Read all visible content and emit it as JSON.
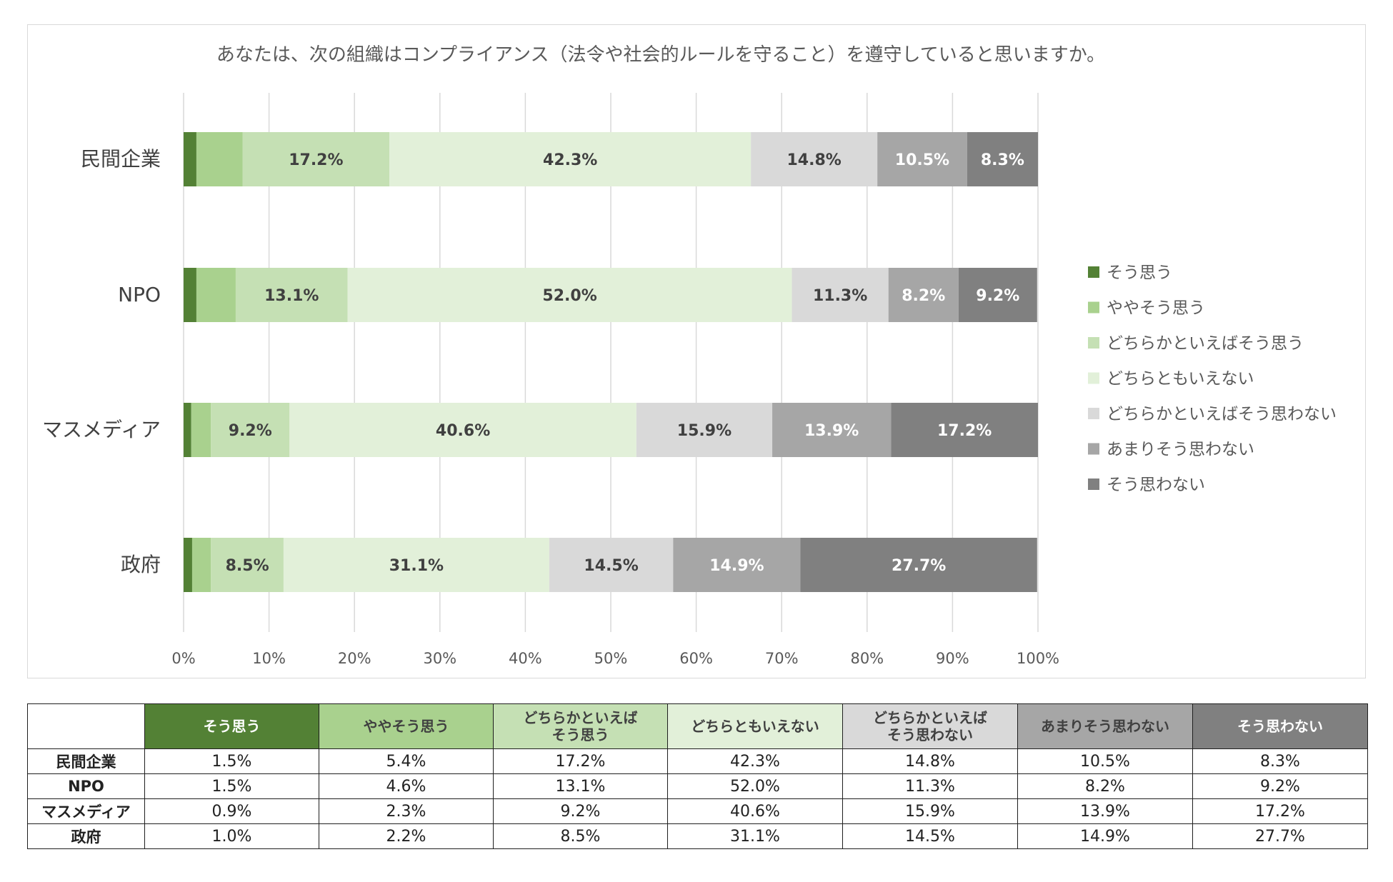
{
  "chart_data": {
    "type": "bar",
    "orientation": "horizontal",
    "stacked": "percent",
    "title": "あなたは、次の組織はコンプライアンス（法令や社会的ルールを守ること）を遵守していると思いますか。",
    "categories": [
      "民間企業",
      "NPO",
      "マスメディア",
      "政府"
    ],
    "x_ticks": [
      "0%",
      "10%",
      "20%",
      "30%",
      "40%",
      "50%",
      "60%",
      "70%",
      "80%",
      "90%",
      "100%"
    ],
    "xlim": [
      0,
      100
    ],
    "grid": true,
    "legend_position": "right",
    "series": [
      {
        "name": "そう思う",
        "color": "#538135",
        "label_color": "#ffffff",
        "values": [
          1.5,
          1.5,
          0.9,
          1.0
        ],
        "labels": [
          "",
          "",
          "",
          ""
        ]
      },
      {
        "name": "ややそう思う",
        "color": "#a9d18e",
        "label_color": "#404040",
        "values": [
          5.4,
          4.6,
          2.3,
          2.2
        ],
        "labels": [
          "",
          "",
          "",
          ""
        ]
      },
      {
        "name": "どちらかといえばそう思う",
        "color": "#c5e0b4",
        "label_color": "#404040",
        "values": [
          17.2,
          13.1,
          9.2,
          8.5
        ],
        "labels": [
          "17.2%",
          "13.1%",
          "9.2%",
          "8.5%"
        ]
      },
      {
        "name": "どちらともいえない",
        "color": "#e2f0d9",
        "label_color": "#404040",
        "values": [
          42.3,
          52.0,
          40.6,
          31.1
        ],
        "labels": [
          "42.3%",
          "52.0%",
          "40.6%",
          "31.1%"
        ]
      },
      {
        "name": "どちらかといえばそう思わない",
        "color": "#d9d9d9",
        "label_color": "#404040",
        "values": [
          14.8,
          11.3,
          15.9,
          14.5
        ],
        "labels": [
          "14.8%",
          "11.3%",
          "15.9%",
          "14.5%"
        ]
      },
      {
        "name": "あまりそう思わない",
        "color": "#a6a6a6",
        "label_color": "#ffffff",
        "values": [
          10.5,
          8.2,
          13.9,
          14.9
        ],
        "labels": [
          "10.5%",
          "8.2%",
          "13.9%",
          "14.9%"
        ]
      },
      {
        "name": "そう思わない",
        "color": "#808080",
        "label_color": "#ffffff",
        "values": [
          8.3,
          9.2,
          17.2,
          27.7
        ],
        "labels": [
          "8.3%",
          "9.2%",
          "17.2%",
          "27.7%"
        ]
      }
    ]
  },
  "table": {
    "corner": "",
    "headers": [
      {
        "lines": [
          "そう思う"
        ],
        "bg": "#538135",
        "fg": "#ffffff"
      },
      {
        "lines": [
          "ややそう思う"
        ],
        "bg": "#a9d18e",
        "fg": "#404040"
      },
      {
        "lines": [
          "どちらかといえば",
          "そう思う"
        ],
        "bg": "#c5e0b4",
        "fg": "#404040"
      },
      {
        "lines": [
          "どちらともいえない"
        ],
        "bg": "#e2f0d9",
        "fg": "#404040"
      },
      {
        "lines": [
          "どちらかといえば",
          "そう思わない"
        ],
        "bg": "#d9d9d9",
        "fg": "#404040"
      },
      {
        "lines": [
          "あまりそう思わない"
        ],
        "bg": "#a6a6a6",
        "fg": "#404040"
      },
      {
        "lines": [
          "そう思わない"
        ],
        "bg": "#808080",
        "fg": "#ffffff"
      }
    ],
    "rows": [
      {
        "label": "民間企業",
        "cells": [
          "1.5%",
          "5.4%",
          "17.2%",
          "42.3%",
          "14.8%",
          "10.5%",
          "8.3%"
        ]
      },
      {
        "label": "NPO",
        "cells": [
          "1.5%",
          "4.6%",
          "13.1%",
          "52.0%",
          "11.3%",
          "8.2%",
          "9.2%"
        ]
      },
      {
        "label": "マスメディア",
        "cells": [
          "0.9%",
          "2.3%",
          "9.2%",
          "40.6%",
          "15.9%",
          "13.9%",
          "17.2%"
        ]
      },
      {
        "label": "政府",
        "cells": [
          "1.0%",
          "2.2%",
          "8.5%",
          "31.1%",
          "14.5%",
          "14.9%",
          "27.7%"
        ]
      }
    ]
  }
}
